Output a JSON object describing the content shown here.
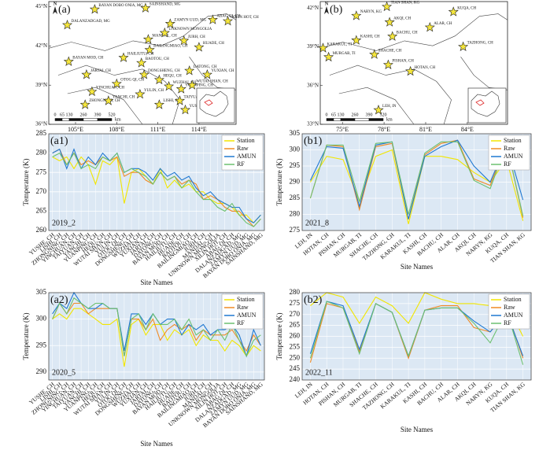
{
  "chart_data": [
    {
      "type": "map",
      "label": "(a)",
      "north": "N",
      "xlim": [
        103.05,
        116.7
      ],
      "ylim": [
        36,
        45.4
      ],
      "xticks": [
        {
          "value": 105,
          "label": "105°E"
        },
        {
          "value": 108,
          "label": "108°E"
        },
        {
          "value": 111,
          "label": "111°E"
        },
        {
          "value": 114,
          "label": "114°E"
        }
      ],
      "yticks": [
        {
          "value": 36,
          "label": "36°N"
        },
        {
          "value": 39,
          "label": "39°N"
        },
        {
          "value": 42,
          "label": "42°N"
        },
        {
          "value": 45,
          "label": "45°N"
        }
      ],
      "scale_km": [
        0,
        65,
        130,
        260,
        390,
        520
      ],
      "scale_unit": "km",
      "stations": [
        {
          "name": "YUSHE, CH",
          "lon": 113.0,
          "lat": 37.1
        },
        {
          "name": "LISHI, CH",
          "lon": 111.1,
          "lat": 37.5
        },
        {
          "name": "ZHONGNING, CH",
          "lon": 105.7,
          "lat": 37.5
        },
        {
          "name": "YINCHUAN, CH",
          "lon": 106.2,
          "lat": 38.5
        },
        {
          "name": "TAIYUAN, CH",
          "lon": 112.6,
          "lat": 37.8
        },
        {
          "name": "YANCHI, CH",
          "lon": 107.4,
          "lat": 37.8
        },
        {
          "name": "YUANPING, CH",
          "lon": 112.7,
          "lat": 38.7
        },
        {
          "name": "HEQU, CH",
          "lon": 111.1,
          "lat": 39.4
        },
        {
          "name": "WUTAI SHAN, CH",
          "lon": 113.5,
          "lat": 39.0
        },
        {
          "name": "YULIN, CH",
          "lon": 109.7,
          "lat": 38.3
        },
        {
          "name": "OTOG QI, CH",
          "lon": 108.0,
          "lat": 39.1
        },
        {
          "name": "DONGSHENG, CH",
          "lon": 110.0,
          "lat": 39.8
        },
        {
          "name": "WUZHAI, CH",
          "lon": 111.8,
          "lat": 38.9
        },
        {
          "name": "YUXIAN, CH",
          "lon": 114.6,
          "lat": 39.8
        },
        {
          "name": "JARTAI, CH",
          "lon": 105.8,
          "lat": 39.8
        },
        {
          "name": "DATONG, CH",
          "lon": 113.3,
          "lat": 40.1
        },
        {
          "name": "BAYAN MOD, CH",
          "lon": 104.5,
          "lat": 40.8
        },
        {
          "name": "HAILIUTU, CH",
          "lon": 108.5,
          "lat": 41.1
        },
        {
          "name": "HUADE, CH",
          "lon": 114.0,
          "lat": 41.9
        },
        {
          "name": "BAOTOU, CH",
          "lon": 109.8,
          "lat": 40.7
        },
        {
          "name": "BAILINGMIAO, CH",
          "lon": 110.4,
          "lat": 41.7
        },
        {
          "name": "JURH, CH",
          "lon": 112.9,
          "lat": 42.4
        },
        {
          "name": "MANDAL, CH",
          "lon": 110.3,
          "lat": 42.5
        },
        {
          "name": "UNKNOWN MONGOLIA",
          "lon": 111.5,
          "lat": 43.0
        },
        {
          "name": "XILIN HOT, CH",
          "lon": 116.1,
          "lat": 43.9
        },
        {
          "name": "ABAG QI, CH",
          "lon": 115.0,
          "lat": 44.0
        },
        {
          "name": "DALANZADGAD, MG",
          "lon": 104.4,
          "lat": 43.6
        },
        {
          "name": "ZAMYN UUD, MG",
          "lon": 111.9,
          "lat": 43.7
        },
        {
          "name": "BAYAN DOBO ONIA, MG",
          "lon": 106.4,
          "lat": 44.8
        },
        {
          "name": "SAINSHAND, MG",
          "lon": 110.1,
          "lat": 44.9
        }
      ]
    },
    {
      "type": "map",
      "label": "(b)",
      "north": "N",
      "xlim": [
        73.4,
        86.9
      ],
      "ylim": [
        33,
        42.5
      ],
      "xticks": [
        {
          "value": 75,
          "label": "75°E"
        },
        {
          "value": 78,
          "label": "78°E"
        },
        {
          "value": 81,
          "label": "81°E"
        },
        {
          "value": 84,
          "label": "84°E"
        }
      ],
      "yticks": [
        {
          "value": 33,
          "label": "33°N"
        },
        {
          "value": 36,
          "label": "36°N"
        },
        {
          "value": 39,
          "label": "39°N"
        },
        {
          "value": 42,
          "label": "42°N"
        }
      ],
      "scale_km": [
        0,
        65,
        130,
        260,
        390,
        520
      ],
      "scale_unit": "km",
      "stations": [
        {
          "name": "LEH, IN",
          "lon": 77.6,
          "lat": 34.1
        },
        {
          "name": "HOTAN, CH",
          "lon": 79.9,
          "lat": 37.1
        },
        {
          "name": "PISHAN, CH",
          "lon": 78.3,
          "lat": 37.6
        },
        {
          "name": "MURGAB, TI",
          "lon": 74.0,
          "lat": 38.2
        },
        {
          "name": "SHACHE, CH",
          "lon": 77.3,
          "lat": 38.4
        },
        {
          "name": "TAZHONG, CH",
          "lon": 83.7,
          "lat": 39.0
        },
        {
          "name": "KARAKUL, TI",
          "lon": 73.6,
          "lat": 38.9
        },
        {
          "name": "KASHI, CH",
          "lon": 76.0,
          "lat": 39.5
        },
        {
          "name": "BACHU, CH",
          "lon": 78.6,
          "lat": 39.8
        },
        {
          "name": "ALAR, CH",
          "lon": 81.3,
          "lat": 40.5
        },
        {
          "name": "AKQI, CH",
          "lon": 78.4,
          "lat": 40.9
        },
        {
          "name": "NARYN, KG",
          "lon": 76.0,
          "lat": 41.4
        },
        {
          "name": "KUQA, CH",
          "lon": 83.0,
          "lat": 41.7
        },
        {
          "name": "TIAN SHAN, KG",
          "lon": 78.2,
          "lat": 42.1
        }
      ]
    },
    {
      "type": "line",
      "label": "(a1)",
      "subtitle": "2019_2",
      "ylabel": "Temperature (K)",
      "xlabel": "Site Names",
      "ylim": [
        260,
        285
      ],
      "yticks": [
        260,
        265,
        270,
        275,
        280,
        285
      ],
      "grid": true,
      "legend": "upper right",
      "categories": [
        "YUSHE, CH",
        "LISHI, CH",
        "ZHONGNING, CH",
        "YINCHUAN, CH",
        "TAIYUAN, CH",
        "YANCHI, CH",
        "YUANPING, CH",
        "HEQU, CH",
        "WUTAI SHAN, CH",
        "YULIN, CH",
        "OTOG QI, CH",
        "DONGSHENG, CH",
        "WUZHAI, CH",
        "YUXIAN, CH",
        "JARTAI, CH",
        "DATONG, CH",
        "BAYAN MOD, CH",
        "HAILIUTU, CH",
        "HUADE, CH",
        "BAOTOU, CH",
        "BAILINGMIAO, CH",
        "JURH, CH",
        "MANDAL, CH",
        "UNKNOWN MONGOLIA",
        "XILIN HOT, CH",
        "ABAG QI, CH",
        "DALANZADGAD, MG",
        "ZAMYN UUD, MG",
        "BAYAN DOBO ONIA, MG",
        "SAINSHAND, MG"
      ],
      "series": [
        {
          "name": "Station",
          "color": "#f2e600",
          "values": [
            279,
            278,
            279,
            276,
            279,
            277,
            272,
            278,
            277,
            279,
            267,
            275,
            276,
            274,
            272,
            276,
            271,
            273,
            271,
            272,
            270,
            270,
            268,
            267,
            267,
            266,
            264,
            264,
            262,
            264
          ]
        },
        {
          "name": "Raw",
          "color": "#f08a24",
          "values": [
            280,
            281,
            277,
            280,
            277,
            278,
            277,
            279,
            278,
            279,
            274,
            275,
            275,
            273,
            272,
            275,
            273,
            274,
            272,
            273,
            272,
            268,
            269,
            268,
            266,
            265,
            265,
            263,
            261,
            263
          ]
        },
        {
          "name": "AMUN",
          "color": "#1f78d1",
          "values": [
            280,
            281,
            276,
            281,
            276,
            279,
            277,
            280,
            278,
            280,
            275,
            276,
            276,
            275,
            273,
            276,
            274,
            275,
            273,
            274,
            271,
            269,
            270,
            268,
            267,
            266,
            266,
            263,
            262,
            264
          ]
        },
        {
          "name": "RF",
          "color": "#6cc070",
          "values": [
            279,
            280,
            277,
            280,
            276,
            277,
            276,
            279,
            278,
            280,
            275,
            276,
            275,
            274,
            272,
            275,
            273,
            274,
            271,
            273,
            270,
            268,
            268,
            266,
            265,
            267,
            264,
            262,
            261,
            263
          ]
        }
      ]
    },
    {
      "type": "line",
      "label": "(b1)",
      "subtitle": "2021_8",
      "ylabel": "Temperature (K)",
      "xlabel": "Site Names",
      "ylim": [
        275,
        305
      ],
      "yticks": [
        275,
        280,
        285,
        290,
        295,
        300,
        305
      ],
      "grid": true,
      "legend": "upper right",
      "categories": [
        "LEH, IN",
        "HOTAN, CH",
        "PISHAN, CH",
        "MURGAB, TI",
        "SHACHE, CH",
        "TAZHONG, CH",
        "KARAKUL, TI",
        "KASHI, CH",
        "BACHU, CH",
        "ALAR, CH",
        "AKQI, CH",
        "NARYN, KG",
        "KUQA, CH",
        "TIAN SHAN, KG"
      ],
      "series": [
        {
          "name": "Station",
          "color": "#f2e600",
          "values": [
            290,
            298,
            297,
            284,
            298,
            300,
            277,
            298,
            298,
            297,
            293,
            290,
            297,
            278
          ]
        },
        {
          "name": "Raw",
          "color": "#f08a24",
          "values": [
            285,
            301.5,
            301,
            281.5,
            301,
            302,
            278.5,
            298.5,
            302,
            303,
            291,
            289,
            302,
            279
          ]
        },
        {
          "name": "AMUN",
          "color": "#1f78d1",
          "values": [
            290.5,
            301,
            300.5,
            282.5,
            301.5,
            302.5,
            278.5,
            298,
            301,
            303,
            295,
            290,
            302,
            284.5
          ]
        },
        {
          "name": "RF",
          "color": "#6cc070",
          "values": [
            285,
            301.5,
            301.5,
            284,
            302,
            302.5,
            280,
            299,
            302.5,
            302.5,
            290.5,
            288,
            302,
            279.5
          ]
        }
      ]
    },
    {
      "type": "line",
      "label": "(a2)",
      "subtitle": "2020_5",
      "ylabel": "Temperature (K)",
      "xlabel": "Site Names",
      "ylim": [
        288.5,
        305
      ],
      "yticks": [
        290,
        295,
        300,
        305
      ],
      "grid": true,
      "legend": "upper right",
      "categories": [
        "YUSHE, CH",
        "LISHI, CH",
        "ZHONGNING, CH",
        "YINCHUAN, CH",
        "TAIYUAN, CH",
        "YANCHI, CH",
        "YUANPING, CH",
        "HEQU, CH",
        "WUTAI SHAN, CH",
        "YULIN, CH",
        "OTOG QI, CH",
        "DONGSHENG, CH",
        "WUZHAI, CH",
        "YUXIAN, CH",
        "JARTAI, CH",
        "DATONG, CH",
        "BAYAN MOD, CH",
        "HAILIUTU, CH",
        "HUADE, CH",
        "BAOTOU, CH",
        "BAILINGMIAO, CH",
        "JURH, CH",
        "MANDAL, CH",
        "UNKNOWN MONGOLIA",
        "XILIN HOT, CH",
        "ABAG QI, CH",
        "DALANZADGAD, MG",
        "ZAMYN UUD, MG",
        "BAYAN DOBO ONIA, MG",
        "SAINSHAND, MG"
      ],
      "series": [
        {
          "name": "Station",
          "color": "#f2e600",
          "values": [
            300,
            301,
            300,
            302,
            302,
            301,
            300,
            299,
            299,
            300,
            291,
            299,
            300,
            297,
            299,
            299,
            296,
            298,
            297,
            298,
            295,
            297,
            296,
            296,
            294,
            296,
            295,
            293,
            295,
            294
          ]
        },
        {
          "name": "Raw",
          "color": "#f08a24",
          "values": [
            300,
            303,
            301,
            303,
            303,
            301,
            302,
            302,
            302,
            302,
            293,
            300,
            300,
            298,
            300,
            296,
            298,
            299,
            298,
            299,
            296,
            298,
            297,
            297,
            297,
            298,
            296,
            294,
            297,
            295
          ]
        },
        {
          "name": "AMUN",
          "color": "#1f78d1",
          "values": [
            301,
            303,
            302,
            305,
            303,
            302,
            302,
            303,
            302,
            302,
            294,
            301,
            301,
            299,
            301,
            299,
            300,
            300,
            297,
            299,
            298,
            299,
            297,
            298,
            298,
            299,
            297,
            293,
            298,
            295
          ]
        },
        {
          "name": "RF",
          "color": "#6cc070",
          "values": [
            300,
            303,
            301,
            304,
            303,
            302,
            303,
            303,
            302,
            302,
            293,
            300,
            301,
            298,
            301,
            299,
            299,
            300,
            298,
            300,
            297,
            298,
            296,
            298,
            296,
            299,
            296,
            293,
            296,
            297
          ]
        }
      ]
    },
    {
      "type": "line",
      "label": "(b2)",
      "subtitle": "2022_11",
      "ylabel": "Temperature (K)",
      "xlabel": "Site Names",
      "ylim": [
        240,
        280
      ],
      "yticks": [
        240,
        245,
        250,
        255,
        260,
        265,
        270,
        275,
        280
      ],
      "grid": true,
      "legend": "upper right",
      "categories": [
        "LEH, IN",
        "HOTAN, CH",
        "PISHAN, CH",
        "MURGAB, TI",
        "SHACHE, CH",
        "TAZHONG, CH",
        "KARAKUL, TI",
        "KASHI, CH",
        "BACHU, CH",
        "ALAR, CH",
        "AKQI, CH",
        "NARYN, KG",
        "KUQA, CH",
        "TIAN SHAN, KG"
      ],
      "series": [
        {
          "name": "Station",
          "color": "#f2e600",
          "values": [
            274,
            280,
            278,
            266,
            278,
            274,
            266,
            280,
            277,
            275,
            275,
            274,
            275,
            260
          ]
        },
        {
          "name": "Raw",
          "color": "#f08a24",
          "values": [
            248,
            275,
            273,
            253,
            275,
            271,
            250,
            272,
            274,
            274,
            264,
            262,
            272,
            250
          ]
        },
        {
          "name": "AMUN",
          "color": "#1f78d1",
          "values": [
            252,
            276,
            274,
            254,
            275,
            271,
            251,
            272,
            273,
            273,
            267,
            262,
            271,
            251
          ]
        },
        {
          "name": "RF",
          "color": "#6cc070",
          "values": [
            250,
            276,
            273,
            252,
            275,
            271,
            251,
            272,
            273,
            273,
            266,
            257,
            272,
            247
          ]
        }
      ]
    }
  ]
}
